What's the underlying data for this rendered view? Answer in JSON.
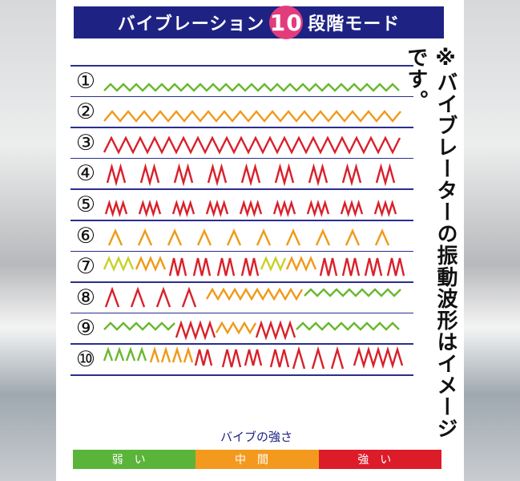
{
  "title": {
    "prefix": "バイブレーション",
    "number": "10",
    "suffix": "段階モード"
  },
  "note": "※バイブレーターの振動波形はイメージです。",
  "rows": [
    {
      "label": "①"
    },
    {
      "label": "②"
    },
    {
      "label": "③"
    },
    {
      "label": "④"
    },
    {
      "label": "⑤"
    },
    {
      "label": "⑥"
    },
    {
      "label": "⑦"
    },
    {
      "label": "⑧"
    },
    {
      "label": "⑨"
    },
    {
      "label": "⑩"
    }
  ],
  "legend": {
    "title": "バイブの強さ",
    "levels": [
      {
        "label": "弱い",
        "color": "#5bb43a"
      },
      {
        "label": "中間",
        "color": "#f39a1e"
      },
      {
        "label": "強い",
        "color": "#dd1c2a"
      }
    ]
  },
  "colors": {
    "weak": "#6ab82e",
    "yellow": "#c8d12a",
    "mid": "#ef9a18",
    "strong": "#d9202a",
    "title_bg": "#1e2383",
    "title_circle": "#e23c7c"
  }
}
